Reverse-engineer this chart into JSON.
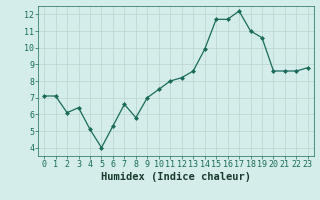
{
  "x": [
    0,
    1,
    2,
    3,
    4,
    5,
    6,
    7,
    8,
    9,
    10,
    11,
    12,
    13,
    14,
    15,
    16,
    17,
    18,
    19,
    20,
    21,
    22,
    23
  ],
  "y": [
    7.1,
    7.1,
    6.1,
    6.4,
    5.1,
    4.0,
    5.3,
    6.6,
    5.8,
    7.0,
    7.5,
    8.0,
    8.2,
    8.6,
    9.9,
    11.7,
    11.7,
    12.2,
    11.0,
    10.6,
    8.6,
    8.6,
    8.6,
    8.8
  ],
  "xlabel": "Humidex (Indice chaleur)",
  "ylim": [
    3.5,
    12.5
  ],
  "xlim": [
    -0.5,
    23.5
  ],
  "yticks": [
    4,
    5,
    6,
    7,
    8,
    9,
    10,
    11,
    12
  ],
  "xtick_labels": [
    "0",
    "1",
    "2",
    "3",
    "4",
    "5",
    "6",
    "7",
    "8",
    "9",
    "10",
    "11",
    "12",
    "13",
    "14",
    "15",
    "16",
    "17",
    "18",
    "19",
    "20",
    "21",
    "22",
    "23"
  ],
  "line_color": "#1a6b5a",
  "marker_color": "#1a6b5a",
  "bg_color": "#d4edea",
  "grid_color": "#c0d8d4",
  "tick_label_color": "#1a6b5a",
  "axis_label_color": "#1a3a30",
  "font_size_tick": 6.0,
  "font_size_xlabel": 7.5
}
